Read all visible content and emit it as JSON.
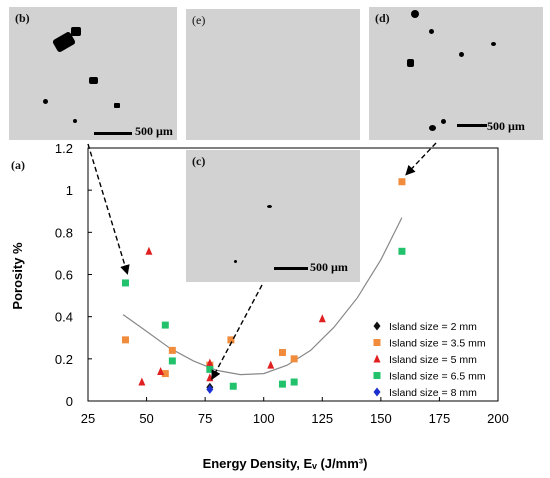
{
  "figure_label": "(a)",
  "micrographs": [
    {
      "label": "(b)",
      "scale_bar": "500 µm"
    },
    {
      "label": "(e)",
      "scale_bar": ""
    },
    {
      "label": "(d)",
      "scale_bar": "500 µm"
    },
    {
      "label": "(c)",
      "scale_bar": "500 µm"
    }
  ],
  "colors": {
    "island_2": "#111111",
    "island_3_5": "#f08c3c",
    "island_5": "#e02020",
    "island_6_5": "#22c26c",
    "island_8": "#1a2fd0",
    "fit": "#888888",
    "micrograph_bg": "#d2d2d2"
  },
  "chart_data": {
    "type": "scatter",
    "xlabel": "Energy Density, Eᵥ (J/mm³)",
    "ylabel": "Porosity %",
    "xlim": [
      25,
      200
    ],
    "ylim": [
      0,
      1.2
    ],
    "x_ticks": [
      25,
      50,
      75,
      100,
      125,
      150,
      175,
      200
    ],
    "y_ticks": [
      0,
      0.2,
      0.4,
      0.6,
      0.8,
      1,
      1.2
    ],
    "grid": false,
    "legend_position": "right",
    "series": [
      {
        "name": "Island size = 2 mm",
        "marker": "diamond",
        "color": "#111111",
        "points": [
          [
            77,
            0.065
          ]
        ]
      },
      {
        "name": "Island size = 3.5 mm",
        "marker": "square",
        "color": "#f08c3c",
        "points": [
          [
            41,
            0.29
          ],
          [
            58,
            0.13
          ],
          [
            61,
            0.24
          ],
          [
            77,
            0.17
          ],
          [
            86,
            0.29
          ],
          [
            108,
            0.23
          ],
          [
            113,
            0.2
          ],
          [
            159,
            1.04
          ]
        ]
      },
      {
        "name": "Island size = 5 mm",
        "marker": "triangle",
        "color": "#e02020",
        "points": [
          [
            48,
            0.09
          ],
          [
            51,
            0.71
          ],
          [
            56,
            0.14
          ],
          [
            77,
            0.18
          ],
          [
            77,
            0.11
          ],
          [
            103,
            0.17
          ],
          [
            125,
            0.39
          ]
        ]
      },
      {
        "name": "Island size = 6.5 mm",
        "marker": "square",
        "color": "#22c26c",
        "points": [
          [
            41,
            0.56
          ],
          [
            58,
            0.36
          ],
          [
            61,
            0.19
          ],
          [
            77,
            0.15
          ],
          [
            87,
            0.07
          ],
          [
            108,
            0.08
          ],
          [
            113,
            0.09
          ],
          [
            159,
            0.71
          ]
        ]
      },
      {
        "name": "Island size = 8 mm",
        "marker": "diamond",
        "color": "#1a2fd0",
        "points": [
          [
            77,
            0.055
          ]
        ]
      }
    ],
    "fit_curve": {
      "type": "polynomial",
      "x_range": [
        40,
        159
      ],
      "points": [
        [
          40,
          0.41
        ],
        [
          50,
          0.33
        ],
        [
          60,
          0.25
        ],
        [
          70,
          0.19
        ],
        [
          80,
          0.145
        ],
        [
          90,
          0.125
        ],
        [
          100,
          0.13
        ],
        [
          110,
          0.17
        ],
        [
          120,
          0.24
        ],
        [
          130,
          0.35
        ],
        [
          140,
          0.49
        ],
        [
          150,
          0.67
        ],
        [
          159,
          0.87
        ]
      ]
    }
  }
}
